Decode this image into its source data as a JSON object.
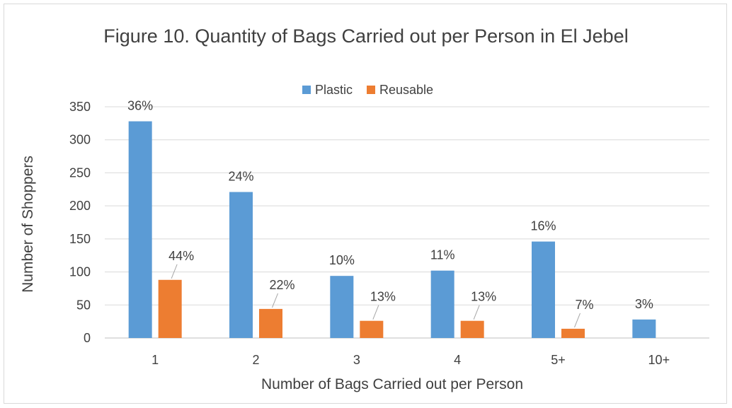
{
  "chart_data": {
    "type": "bar",
    "title": "Figure 10. Quantity of Bags Carried out per Person in El Jebel",
    "xlabel": "Number of Bags Carried out per Person",
    "ylabel": "Number of Shoppers",
    "categories": [
      "1",
      "2",
      "3",
      "4",
      "5+",
      "10+"
    ],
    "ylim": [
      0,
      350
    ],
    "yticks": [
      0,
      50,
      100,
      150,
      200,
      250,
      300,
      350
    ],
    "grid": true,
    "legend_position": "top",
    "series": [
      {
        "name": "Plastic",
        "color": "#5b9bd5",
        "values": [
          328,
          221,
          94,
          102,
          146,
          28
        ],
        "labels": [
          "36%",
          "24%",
          "10%",
          "11%",
          "16%",
          "3%"
        ]
      },
      {
        "name": "Reusable",
        "color": "#ed7d31",
        "values": [
          88,
          44,
          26,
          26,
          14,
          null
        ],
        "labels": [
          "44%",
          "22%",
          "13%",
          "13%",
          "7%",
          null
        ]
      }
    ]
  }
}
